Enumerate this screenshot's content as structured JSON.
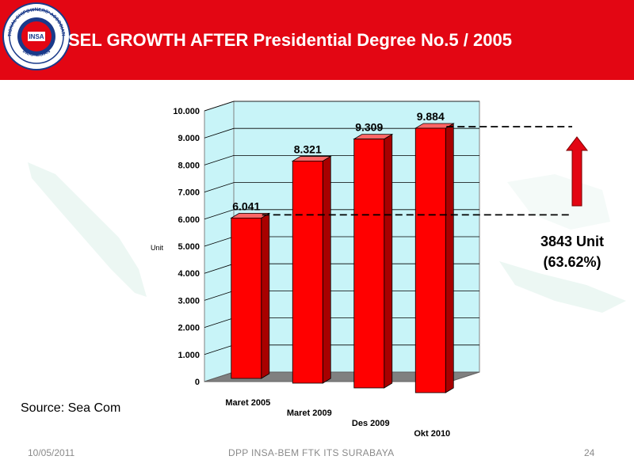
{
  "header": {
    "title": "SEL GROWTH AFTER Presidential Degree No.5 / 2005",
    "bg_color": "#e30613"
  },
  "logo": {
    "ring_text_top": "NATIONAL SHIPOWNERS' ASSOCIATION",
    "ring_text_bottom": "INDONESIAN",
    "center_text": "INSA"
  },
  "chart_data": {
    "type": "bar",
    "categories": [
      "Maret 2005",
      "Maret 2009",
      "Des 2009",
      "Okt 2010"
    ],
    "values": [
      6041,
      8321,
      9309,
      9884
    ],
    "value_labels": [
      "6.041",
      "8.321",
      "9.309",
      "9.884"
    ],
    "ylabel": "Unit",
    "ylim": [
      0,
      10000
    ],
    "yticks": [
      0,
      1000,
      2000,
      3000,
      4000,
      5000,
      6000,
      7000,
      8000,
      9000,
      10000
    ],
    "ytick_labels": [
      "0",
      "1.000",
      "2.000",
      "3.000",
      "4.000",
      "5.000",
      "6.000",
      "7.000",
      "8.000",
      "9.000",
      "10.000"
    ],
    "grid": true,
    "bar_color": "#ff0000",
    "wall_color": "#c8f4f8",
    "floor_color": "#808080"
  },
  "annotation": {
    "line1": "3843 Unit",
    "line2": "(63.62%)",
    "arrow_color": "#e30613"
  },
  "source": "Source: Sea Com",
  "footer": {
    "date": "10/05/2011",
    "org": "DPP INSA-BEM FTK ITS SURABAYA",
    "page": "24"
  }
}
